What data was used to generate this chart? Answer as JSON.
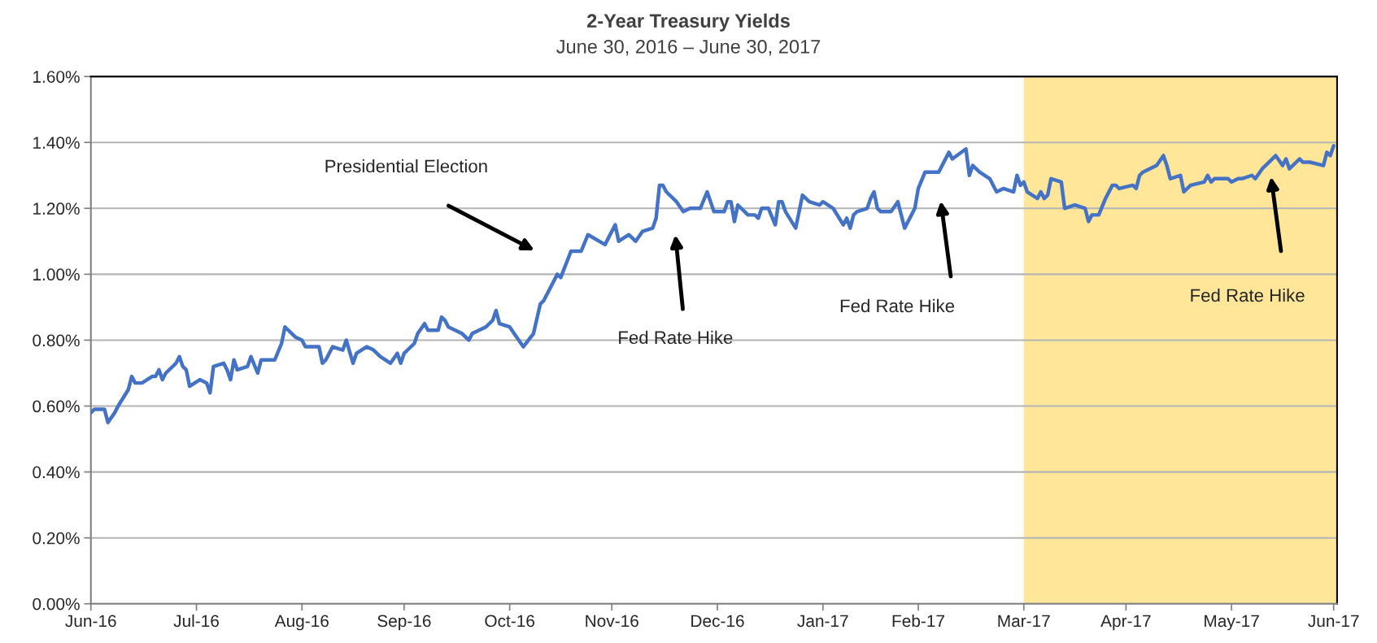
{
  "chart_data": {
    "type": "line",
    "title": "2-Year Treasury Yields",
    "subtitle": "June 30, 2016 – June 30, 2017",
    "x": [
      "2016-06-30",
      "2016-07-01",
      "2016-07-04",
      "2016-07-05",
      "2016-07-07",
      "2016-07-08",
      "2016-07-11",
      "2016-07-12",
      "2016-07-13",
      "2016-07-15",
      "2016-07-18",
      "2016-07-19",
      "2016-07-20",
      "2016-07-21",
      "2016-07-22",
      "2016-07-25",
      "2016-07-26",
      "2016-07-27",
      "2016-07-28",
      "2016-07-29",
      "2016-08-01",
      "2016-08-03",
      "2016-08-04",
      "2016-08-05",
      "2016-08-08",
      "2016-08-09",
      "2016-08-10",
      "2016-08-11",
      "2016-08-12",
      "2016-08-15",
      "2016-08-16",
      "2016-08-18",
      "2016-08-19",
      "2016-08-23",
      "2016-08-25",
      "2016-08-26",
      "2016-08-29",
      "2016-08-31",
      "2016-09-01",
      "2016-09-05",
      "2016-09-06",
      "2016-09-07",
      "2016-09-09",
      "2016-09-12",
      "2016-09-13",
      "2016-09-15",
      "2016-09-16",
      "2016-09-19",
      "2016-09-21",
      "2016-09-23",
      "2016-09-26",
      "2016-09-28",
      "2016-09-29",
      "2016-09-30",
      "2016-10-03",
      "2016-10-04",
      "2016-10-06",
      "2016-10-07",
      "2016-10-10",
      "2016-10-11",
      "2016-10-12",
      "2016-10-13",
      "2016-10-17",
      "2016-10-19",
      "2016-10-20",
      "2016-10-24",
      "2016-10-26",
      "2016-10-27",
      "2016-10-28",
      "2016-10-31",
      "2016-11-02",
      "2016-11-04",
      "2016-11-07",
      "2016-11-09",
      "2016-11-10",
      "2016-11-14",
      "2016-11-15",
      "2016-11-18",
      "2016-11-21",
      "2016-11-23",
      "2016-11-28",
      "2016-12-01",
      "2016-12-02",
      "2016-12-05",
      "2016-12-07",
      "2016-12-09",
      "2016-12-12",
      "2016-12-13",
      "2016-12-14",
      "2016-12-15",
      "2016-12-16",
      "2016-12-19",
      "2016-12-21",
      "2016-12-23",
      "2016-12-26",
      "2016-12-28",
      "2016-12-30",
      "2017-01-02",
      "2017-01-03",
      "2017-01-04",
      "2017-01-05",
      "2017-01-06",
      "2017-01-09",
      "2017-01-11",
      "2017-01-12",
      "2017-01-13",
      "2017-01-15",
      "2017-01-17",
      "2017-01-18",
      "2017-01-19",
      "2017-01-20",
      "2017-01-23",
      "2017-01-25",
      "2017-01-27",
      "2017-01-30",
      "2017-01-31",
      "2017-02-03",
      "2017-02-06",
      "2017-02-07",
      "2017-02-08",
      "2017-02-09",
      "2017-02-10",
      "2017-02-13",
      "2017-02-14",
      "2017-02-15",
      "2017-02-16",
      "2017-02-17",
      "2017-02-20",
      "2017-02-22",
      "2017-02-24",
      "2017-02-27",
      "2017-02-28",
      "2017-03-02",
      "2017-03-06",
      "2017-03-09",
      "2017-03-10",
      "2017-03-14",
      "2017-03-15",
      "2017-03-16",
      "2017-03-18",
      "2017-03-21",
      "2017-03-23",
      "2017-03-25",
      "2017-03-28",
      "2017-03-29",
      "2017-03-30",
      "2017-03-31",
      "2017-04-01",
      "2017-04-04",
      "2017-04-05",
      "2017-04-06",
      "2017-04-07",
      "2017-04-08",
      "2017-04-11",
      "2017-04-12",
      "2017-04-15",
      "2017-04-18",
      "2017-04-19",
      "2017-04-20",
      "2017-04-22",
      "2017-04-24",
      "2017-04-26",
      "2017-04-27",
      "2017-04-28",
      "2017-05-02",
      "2017-05-03",
      "2017-05-04",
      "2017-05-05",
      "2017-05-09",
      "2017-05-11",
      "2017-05-12",
      "2017-05-13",
      "2017-05-16",
      "2017-05-17",
      "2017-05-19",
      "2017-05-23",
      "2017-05-24",
      "2017-05-25",
      "2017-05-26",
      "2017-05-30",
      "2017-05-31",
      "2017-06-02",
      "2017-06-03",
      "2017-06-06",
      "2017-06-07",
      "2017-06-09",
      "2017-06-10",
      "2017-06-13",
      "2017-06-15",
      "2017-06-16",
      "2017-06-17",
      "2017-06-20",
      "2017-06-21",
      "2017-06-23",
      "2017-06-27",
      "2017-06-28",
      "2017-06-29",
      "2017-06-30"
    ],
    "series": [
      {
        "color": "#4472c4",
        "values": [
          0.58,
          0.59,
          0.59,
          0.55,
          0.58,
          0.6,
          0.65,
          0.69,
          0.67,
          0.67,
          0.69,
          0.69,
          0.71,
          0.68,
          0.7,
          0.73,
          0.75,
          0.72,
          0.71,
          0.66,
          0.68,
          0.67,
          0.64,
          0.72,
          0.73,
          0.71,
          0.68,
          0.74,
          0.71,
          0.72,
          0.75,
          0.7,
          0.74,
          0.74,
          0.79,
          0.84,
          0.81,
          0.8,
          0.78,
          0.78,
          0.73,
          0.74,
          0.78,
          0.77,
          0.8,
          0.73,
          0.76,
          0.78,
          0.77,
          0.75,
          0.73,
          0.76,
          0.73,
          0.76,
          0.79,
          0.82,
          0.85,
          0.83,
          0.83,
          0.87,
          0.86,
          0.84,
          0.82,
          0.8,
          0.82,
          0.84,
          0.86,
          0.89,
          0.85,
          0.84,
          0.81,
          0.78,
          0.82,
          0.91,
          0.92,
          1.0,
          0.99,
          1.07,
          1.07,
          1.12,
          1.09,
          1.15,
          1.1,
          1.12,
          1.1,
          1.13,
          1.14,
          1.17,
          1.27,
          1.27,
          1.25,
          1.22,
          1.19,
          1.2,
          1.2,
          1.25,
          1.19,
          1.19,
          1.22,
          1.22,
          1.16,
          1.21,
          1.18,
          1.18,
          1.17,
          1.2,
          1.2,
          1.15,
          1.22,
          1.22,
          1.19,
          1.14,
          1.24,
          1.22,
          1.21,
          1.22,
          1.2,
          1.15,
          1.17,
          1.14,
          1.18,
          1.19,
          1.2,
          1.23,
          1.25,
          1.2,
          1.19,
          1.19,
          1.22,
          1.14,
          1.2,
          1.26,
          1.31,
          1.31,
          1.37,
          1.35,
          1.38,
          1.3,
          1.33,
          1.31,
          1.29,
          1.25,
          1.26,
          1.25,
          1.3,
          1.27,
          1.28,
          1.25,
          1.23,
          1.25,
          1.23,
          1.24,
          1.29,
          1.28,
          1.2,
          1.21,
          1.2,
          1.16,
          1.18,
          1.18,
          1.23,
          1.27,
          1.27,
          1.26,
          1.27,
          1.26,
          1.3,
          1.31,
          1.33,
          1.36,
          1.33,
          1.29,
          1.3,
          1.25,
          1.27,
          1.28,
          1.3,
          1.28,
          1.29,
          1.29,
          1.28,
          1.29,
          1.29,
          1.3,
          1.29,
          1.32,
          1.33,
          1.36,
          1.33,
          1.35,
          1.32,
          1.35,
          1.34,
          1.34,
          1.33,
          1.37,
          1.36,
          1.39
        ]
      }
    ],
    "xlim": [
      "2016-06-30",
      "2017-07-01"
    ],
    "xticks": [
      {
        "value": "2016-06-30",
        "label": "Jun-16"
      },
      {
        "value": "2016-07-31",
        "label": "Jul-16"
      },
      {
        "value": "2016-08-31",
        "label": "Aug-16"
      },
      {
        "value": "2016-09-30",
        "label": "Sep-16"
      },
      {
        "value": "2016-10-31",
        "label": "Oct-16"
      },
      {
        "value": "2016-11-30",
        "label": "Nov-16"
      },
      {
        "value": "2016-12-31",
        "label": "Dec-16"
      },
      {
        "value": "2017-01-31",
        "label": "Jan-17"
      },
      {
        "value": "2017-02-28",
        "label": "Feb-17"
      },
      {
        "value": "2017-03-31",
        "label": "Mar-17"
      },
      {
        "value": "2017-04-30",
        "label": "Apr-17"
      },
      {
        "value": "2017-05-31",
        "label": "May-17"
      },
      {
        "value": "2017-06-30",
        "label": "Jun-17"
      }
    ],
    "ylim": [
      0,
      1.6
    ],
    "yticks": [
      {
        "value": 0,
        "label": "0.00%"
      },
      {
        "value": 0.2,
        "label": "0.20%"
      },
      {
        "value": 0.4,
        "label": "0.40%"
      },
      {
        "value": 0.6,
        "label": "0.60%"
      },
      {
        "value": 0.8,
        "label": "0.80%"
      },
      {
        "value": 1.0,
        "label": "1.00%"
      },
      {
        "value": 1.2,
        "label": "1.20%"
      },
      {
        "value": 1.4,
        "label": "1.40%"
      },
      {
        "value": 1.6,
        "label": "1.60%"
      }
    ],
    "bands": [
      {
        "axis": "x",
        "from": "2017-03-31",
        "to": "2017-07-01",
        "color": "#ffe699"
      }
    ],
    "annotations": [
      "Presidential Election",
      "Fed Rate Hike",
      "Fed Rate Hike",
      "Fed Rate Hike"
    ],
    "grid": "y",
    "marker": "none",
    "line_style": "solid"
  }
}
